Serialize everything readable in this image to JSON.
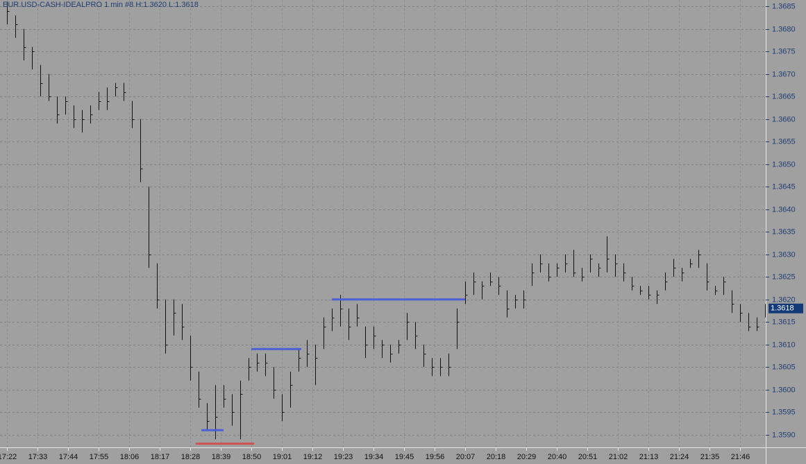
{
  "chart_data": {
    "type": "ohlc",
    "title": "EUR.USD-CASH-IDEALPRO  1 min   #8  H:1.3620  L:1.3618",
    "x": [
      0,
      3,
      6,
      9,
      12,
      15,
      18,
      21,
      24,
      27,
      30,
      33,
      36,
      39,
      42,
      45,
      48,
      51,
      54,
      57,
      60,
      63,
      66,
      69,
      72,
      75,
      78,
      81,
      84,
      87,
      90,
      93,
      96,
      99,
      102,
      105,
      108,
      111,
      114,
      117,
      120,
      123,
      126,
      129,
      132,
      135,
      138,
      141,
      144,
      147,
      150,
      153,
      156,
      159,
      162,
      165,
      168,
      171,
      174,
      177,
      180,
      183,
      186,
      189,
      192,
      195,
      198,
      201,
      204,
      207,
      210,
      213,
      216,
      219,
      222,
      225,
      228,
      231,
      234,
      237,
      240,
      243,
      246,
      249,
      252,
      255,
      258,
      261,
      264,
      267,
      270,
      273
    ],
    "high": [
      1.3686,
      1.3683,
      1.368,
      1.3676,
      1.3672,
      1.367,
      1.3665,
      1.3665,
      1.3663,
      1.3662,
      1.3663,
      1.3666,
      1.3667,
      1.3668,
      1.3668,
      1.3664,
      1.366,
      1.3645,
      1.3628,
      1.362,
      1.362,
      1.3619,
      1.3612,
      1.3604,
      1.3597,
      1.3601,
      1.3601,
      1.3599,
      1.3602,
      1.3607,
      1.3608,
      1.3608,
      1.3605,
      1.3599,
      1.3604,
      1.3609,
      1.3611,
      1.361,
      1.3616,
      1.3618,
      1.3621,
      1.3618,
      1.3619,
      1.3614,
      1.3614,
      1.3611,
      1.361,
      1.3611,
      1.3617,
      1.3615,
      1.361,
      1.3607,
      1.3607,
      1.3608,
      1.3618,
      1.3624,
      1.3626,
      1.3624,
      1.3626,
      1.3625,
      1.3622,
      1.3621,
      1.3622,
      1.3628,
      1.363,
      1.3628,
      1.3628,
      1.363,
      1.3631,
      1.3627,
      1.363,
      1.3628,
      1.3634,
      1.363,
      1.3628,
      1.3625,
      1.3623,
      1.3623,
      1.3622,
      1.3626,
      1.3629,
      1.3627,
      1.3629,
      1.3631,
      1.3628,
      1.3623,
      1.3625,
      1.3622,
      1.3619,
      1.3617,
      1.3616,
      1.3619
    ],
    "low": [
      1.3681,
      1.3678,
      1.3673,
      1.3671,
      1.3665,
      1.3664,
      1.3659,
      1.3661,
      1.3658,
      1.3657,
      1.3659,
      1.3662,
      1.3662,
      1.3665,
      1.3664,
      1.3658,
      1.3646,
      1.3627,
      1.3618,
      1.3608,
      1.3612,
      1.3611,
      1.3602,
      1.3596,
      1.3591,
      1.3589,
      1.3596,
      1.3592,
      1.3589,
      1.3602,
      1.3604,
      1.3603,
      1.3598,
      1.3593,
      1.3596,
      1.3604,
      1.3605,
      1.3601,
      1.3609,
      1.3613,
      1.3614,
      1.3611,
      1.3614,
      1.3607,
      1.3609,
      1.3607,
      1.3606,
      1.3608,
      1.3611,
      1.3609,
      1.3605,
      1.3603,
      1.3603,
      1.3603,
      1.3609,
      1.3619,
      1.3621,
      1.362,
      1.3623,
      1.3621,
      1.3616,
      1.3618,
      1.3618,
      1.3623,
      1.3626,
      1.3624,
      1.3625,
      1.3626,
      1.3625,
      1.3624,
      1.3626,
      1.3625,
      1.3626,
      1.3625,
      1.3624,
      1.3622,
      1.3621,
      1.362,
      1.3619,
      1.3622,
      1.3625,
      1.3624,
      1.3627,
      1.3627,
      1.3622,
      1.3621,
      1.3621,
      1.3617,
      1.3615,
      1.3613,
      1.3613,
      1.3616
    ],
    "close": [
      1.3684,
      1.3681,
      1.3676,
      1.3675,
      1.3668,
      1.3665,
      1.3661,
      1.3664,
      1.366,
      1.366,
      1.3661,
      1.3664,
      1.3664,
      1.3667,
      1.3666,
      1.366,
      1.3649,
      1.363,
      1.362,
      1.361,
      1.3617,
      1.3614,
      1.3605,
      1.3598,
      1.3593,
      1.3594,
      1.3598,
      1.3595,
      1.3599,
      1.3605,
      1.3606,
      1.3606,
      1.36,
      1.3595,
      1.3601,
      1.3607,
      1.3608,
      1.3607,
      1.3614,
      1.3616,
      1.3618,
      1.3614,
      1.3616,
      1.361,
      1.3612,
      1.361,
      1.3608,
      1.361,
      1.3615,
      1.3612,
      1.3608,
      1.3605,
      1.3605,
      1.3605,
      1.3615,
      1.3621,
      1.3624,
      1.3623,
      1.3624,
      1.3623,
      1.3618,
      1.362,
      1.362,
      1.3626,
      1.3628,
      1.3625,
      1.3627,
      1.3628,
      1.3626,
      1.3625,
      1.3629,
      1.3627,
      1.3629,
      1.3628,
      1.3626,
      1.3623,
      1.3622,
      1.3621,
      1.3621,
      1.3624,
      1.3627,
      1.3626,
      1.3628,
      1.363,
      1.3624,
      1.3622,
      1.3624,
      1.3619,
      1.3617,
      1.3614,
      1.3614,
      1.3618
    ],
    "color": "#111111",
    "levels": [
      {
        "price": 1.3591,
        "from": 70,
        "to": 78,
        "color": "#4b5fd6"
      },
      {
        "price": 1.3588,
        "from": 68,
        "to": 89,
        "color": "#d05050"
      },
      {
        "price": 1.3609,
        "from": 88,
        "to": 106,
        "color": "#4b5fd6"
      },
      {
        "price": 1.362,
        "from": 117,
        "to": 165,
        "color": "#4b5fd6"
      }
    ],
    "last_price": 1.3618,
    "xlim": [
      -2.5,
      273.5
    ],
    "ylim": [
      1.35872,
      1.36864
    ],
    "xticks": [
      {
        "value": 0,
        "label": "17:22"
      },
      {
        "value": 11,
        "label": "17:33"
      },
      {
        "value": 22,
        "label": "17:44"
      },
      {
        "value": 33,
        "label": "17:55"
      },
      {
        "value": 44,
        "label": "18:06"
      },
      {
        "value": 55,
        "label": "18:17"
      },
      {
        "value": 66,
        "label": "18:28"
      },
      {
        "value": 77,
        "label": "18:39"
      },
      {
        "value": 88,
        "label": "18:50"
      },
      {
        "value": 99,
        "label": "19:01"
      },
      {
        "value": 110,
        "label": "19:12"
      },
      {
        "value": 121,
        "label": "19:23"
      },
      {
        "value": 132,
        "label": "19:34"
      },
      {
        "value": 143,
        "label": "19:45"
      },
      {
        "value": 154,
        "label": "19:56"
      },
      {
        "value": 165,
        "label": "20:07"
      },
      {
        "value": 176,
        "label": "20:18"
      },
      {
        "value": 187,
        "label": "20:29"
      },
      {
        "value": 198,
        "label": "20:40"
      },
      {
        "value": 209,
        "label": "20:51"
      },
      {
        "value": 220,
        "label": "21:02"
      },
      {
        "value": 231,
        "label": "21:13"
      },
      {
        "value": 242,
        "label": "21:24"
      },
      {
        "value": 253,
        "label": "21:35"
      },
      {
        "value": 264,
        "label": "21:46"
      }
    ],
    "yticks": [
      {
        "value": 1.359,
        "label": "1.3590"
      },
      {
        "value": 1.3595,
        "label": "1.3595"
      },
      {
        "value": 1.36,
        "label": "1.3600"
      },
      {
        "value": 1.3605,
        "label": "1.3605"
      },
      {
        "value": 1.361,
        "label": "1.3610"
      },
      {
        "value": 1.3615,
        "label": "1.3615"
      },
      {
        "value": 1.362,
        "label": "1.3620"
      },
      {
        "value": 1.3625,
        "label": "1.3625"
      },
      {
        "value": 1.363,
        "label": "1.3630"
      },
      {
        "value": 1.3635,
        "label": "1.3635"
      },
      {
        "value": 1.364,
        "label": "1.3640"
      },
      {
        "value": 1.3645,
        "label": "1.3645"
      },
      {
        "value": 1.365,
        "label": "1.3650"
      },
      {
        "value": 1.3655,
        "label": "1.3655"
      },
      {
        "value": 1.366,
        "label": "1.3660"
      },
      {
        "value": 1.3665,
        "label": "1.3665"
      },
      {
        "value": 1.367,
        "label": "1.3670"
      },
      {
        "value": 1.3675,
        "label": "1.3675"
      },
      {
        "value": 1.368,
        "label": "1.3680"
      },
      {
        "value": 1.3685,
        "label": "1.3685"
      }
    ],
    "grid": true
  }
}
